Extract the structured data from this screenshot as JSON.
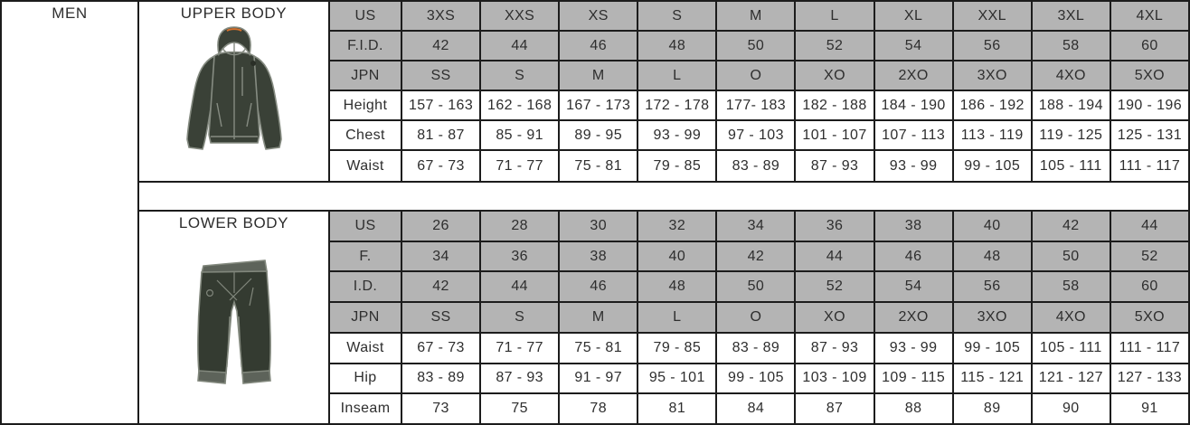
{
  "page": {
    "men_label": "MEN",
    "upper_title": "UPPER BODY",
    "lower_title": "LOWER BODY"
  },
  "colors": {
    "header_bg": "#b4b4b4",
    "border": "#1c1c1c",
    "text": "#2e2e2e",
    "jacket": "#3a4137",
    "garment_line": "#868c82",
    "garment_trim": "#5d635a",
    "accent_orange": "#d4702c"
  },
  "icons": {
    "upper_garment": "jacket-illustration",
    "lower_garment": "pants-illustration"
  },
  "upper_table": {
    "rows": [
      {
        "label": "US",
        "shaded": true,
        "values": [
          "3XS",
          "XXS",
          "XS",
          "S",
          "M",
          "L",
          "XL",
          "XXL",
          "3XL",
          "4XL"
        ]
      },
      {
        "label": "F.I.D.",
        "shaded": true,
        "values": [
          "42",
          "44",
          "46",
          "48",
          "50",
          "52",
          "54",
          "56",
          "58",
          "60"
        ]
      },
      {
        "label": "JPN",
        "shaded": true,
        "values": [
          "SS",
          "S",
          "M",
          "L",
          "O",
          "XO",
          "2XO",
          "3XO",
          "4XO",
          "5XO"
        ]
      },
      {
        "label": "Height",
        "shaded": false,
        "values": [
          "157 - 163",
          "162 - 168",
          "167 - 173",
          "172 - 178",
          "177- 183",
          "182 - 188",
          "184 - 190",
          "186 - 192",
          "188 - 194",
          "190 - 196"
        ]
      },
      {
        "label": "Chest",
        "shaded": false,
        "values": [
          "81 - 87",
          "85 - 91",
          "89 - 95",
          "93 - 99",
          "97 - 103",
          "101 - 107",
          "107 - 113",
          "113 - 119",
          "119 - 125",
          "125 - 131"
        ]
      },
      {
        "label": "Waist",
        "shaded": false,
        "values": [
          "67 - 73",
          "71 - 77",
          "75 - 81",
          "79 - 85",
          "83 - 89",
          "87 - 93",
          "93 - 99",
          "99 - 105",
          "105 - 111",
          "111 - 117"
        ]
      }
    ]
  },
  "lower_table": {
    "rows": [
      {
        "label": "US",
        "shaded": true,
        "values": [
          "26",
          "28",
          "30",
          "32",
          "34",
          "36",
          "38",
          "40",
          "42",
          "44"
        ]
      },
      {
        "label": "F.",
        "shaded": true,
        "values": [
          "34",
          "36",
          "38",
          "40",
          "42",
          "44",
          "46",
          "48",
          "50",
          "52"
        ]
      },
      {
        "label": "I.D.",
        "shaded": true,
        "values": [
          "42",
          "44",
          "46",
          "48",
          "50",
          "52",
          "54",
          "56",
          "58",
          "60"
        ]
      },
      {
        "label": "JPN",
        "shaded": true,
        "values": [
          "SS",
          "S",
          "M",
          "L",
          "O",
          "XO",
          "2XO",
          "3XO",
          "4XO",
          "5XO"
        ]
      },
      {
        "label": "Waist",
        "shaded": false,
        "values": [
          "67 - 73",
          "71 - 77",
          "75 - 81",
          "79 - 85",
          "83 - 89",
          "87 - 93",
          "93 - 99",
          "99 - 105",
          "105 - 111",
          "111 - 117"
        ]
      },
      {
        "label": "Hip",
        "shaded": false,
        "values": [
          "83 - 89",
          "87 - 93",
          "91 - 97",
          "95 - 101",
          "99 - 105",
          "103 - 109",
          "109 - 115",
          "115 - 121",
          "121 - 127",
          "127 - 133"
        ]
      },
      {
        "label": "Inseam",
        "shaded": false,
        "values": [
          "73",
          "75",
          "78",
          "81",
          "84",
          "87",
          "88",
          "89",
          "90",
          "91"
        ]
      }
    ]
  }
}
